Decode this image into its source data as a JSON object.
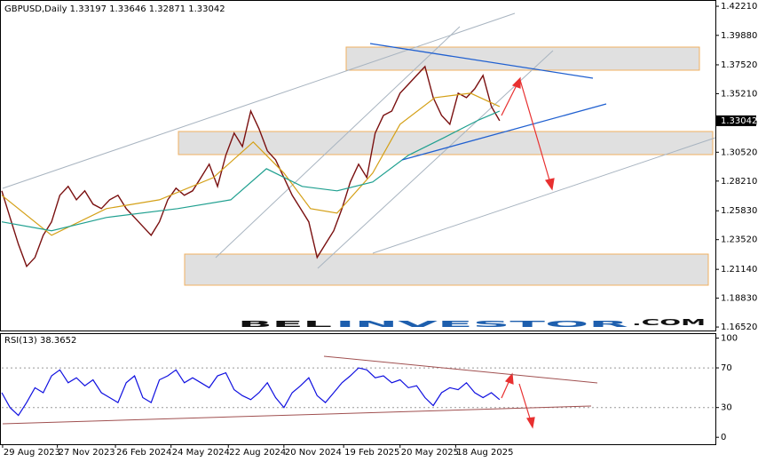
{
  "chart_data": [
    {
      "type": "line",
      "title": "GBPUSD,Daily  1.33197 1.33646 1.32871 1.33042",
      "price_tag": "1.33042",
      "watermark": [
        "BEL",
        "INVESTOR",
        ".COM"
      ],
      "xlim": [
        0,
        86
      ],
      "xticks": [
        {
          "value": 0.1,
          "label": "29 Aug 2023"
        },
        {
          "value": 6.7,
          "label": "27 Nov 2023"
        },
        {
          "value": 13.7,
          "label": "26 Feb 2024"
        },
        {
          "value": 20.4,
          "label": "24 May 2024"
        },
        {
          "value": 27.3,
          "label": "22 Aug 2024"
        },
        {
          "value": 34,
          "label": "20 Nov 2024"
        },
        {
          "value": 41.2,
          "label": "19 Feb 2025"
        },
        {
          "value": 48,
          "label": "20 May 2025"
        },
        {
          "value": 54.7,
          "label": "18 Aug 2025"
        }
      ],
      "ylim": [
        1.1624,
        1.4257
      ],
      "yticks": [
        {
          "value": 1.4221,
          "label": "1.42210"
        },
        {
          "value": 1.3988,
          "label": "1.39880"
        },
        {
          "value": 1.3752,
          "label": "1.37520"
        },
        {
          "value": 1.3521,
          "label": "1.35210"
        },
        {
          "value": 1.3286,
          "label": "1.32860"
        },
        {
          "value": 1.3052,
          "label": "1.30520"
        },
        {
          "value": 1.2821,
          "label": "1.28210"
        },
        {
          "value": 1.2583,
          "label": "1.25830"
        },
        {
          "value": 1.2352,
          "label": "1.23520"
        },
        {
          "value": 1.2114,
          "label": "1.21140"
        },
        {
          "value": 1.1883,
          "label": "1.18830"
        },
        {
          "value": 1.1652,
          "label": "1.16520"
        }
      ],
      "series": [
        {
          "color": "#7a1010",
          "x": [
            0,
            1,
            2,
            3,
            4,
            5,
            6,
            7,
            8,
            9,
            10,
            11,
            12,
            13,
            14,
            15,
            16,
            17,
            18,
            19,
            20,
            21,
            22,
            23,
            24,
            25,
            26,
            27,
            28,
            29,
            30,
            31,
            32,
            33,
            34,
            35,
            36,
            37,
            38,
            39,
            40,
            41,
            42,
            43,
            44,
            45,
            46,
            47,
            48,
            49,
            50,
            51,
            52,
            53,
            54,
            55,
            56,
            57,
            58,
            59,
            60
          ],
          "values": [
            1.2743,
            1.2529,
            1.2316,
            1.2138,
            1.2209,
            1.2387,
            1.2494,
            1.2707,
            1.2778,
            1.2671,
            1.2743,
            1.2636,
            1.26,
            1.2671,
            1.2707,
            1.26,
            1.2529,
            1.2458,
            1.2387,
            1.2494,
            1.2671,
            1.2764,
            1.2707,
            1.2743,
            1.2849,
            1.2956,
            1.2778,
            1.3027,
            1.3205,
            1.3098,
            1.3382,
            1.324,
            1.3063,
            1.2991,
            1.2849,
            1.2707,
            1.26,
            1.2494,
            1.2209,
            1.2316,
            1.2423,
            1.26,
            1.2814,
            1.2956,
            1.2849,
            1.3205,
            1.3347,
            1.3382,
            1.3525,
            1.3596,
            1.3667,
            1.3738,
            1.3489,
            1.3347,
            1.3276,
            1.3525,
            1.3489,
            1.356,
            1.3667,
            1.3418,
            1.3304
          ]
        },
        {
          "color": "#d4a017",
          "x": [
            0,
            6,
            12.6,
            19,
            25.5,
            30.3,
            34,
            37.2,
            40.4,
            44.7,
            48,
            52.2,
            56.5,
            60
          ],
          "values": [
            1.2707,
            1.2387,
            1.26,
            1.2671,
            1.2849,
            1.3134,
            1.2885,
            1.26,
            1.2565,
            1.2885,
            1.3276,
            1.3489,
            1.3525,
            1.3418
          ]
        },
        {
          "color": "#20a090",
          "x": [
            0,
            6,
            12.6,
            21.2,
            27.6,
            31.9,
            36.2,
            40.4,
            44.7,
            49,
            53.3,
            57.5,
            60
          ],
          "values": [
            1.2494,
            1.2423,
            1.2529,
            1.26,
            1.2671,
            1.292,
            1.2778,
            1.2743,
            1.2814,
            1.3027,
            1.3169,
            1.3311,
            1.3382
          ]
        }
      ]
    },
    {
      "type": "line",
      "title": "RSI(13) 38.3652",
      "xlim": [
        0,
        86
      ],
      "ylim": [
        -7,
        105
      ],
      "yticks": [
        100,
        70,
        30,
        0
      ],
      "grid_at": [
        70,
        30
      ],
      "series": [
        {
          "color": "#1010e0",
          "x": [
            0,
            1,
            2,
            3,
            4,
            5,
            6,
            7,
            8,
            9,
            10,
            11,
            12,
            13,
            14,
            15,
            16,
            17,
            18,
            19,
            20,
            21,
            22,
            23,
            24,
            25,
            26,
            27,
            28,
            29,
            30,
            31,
            32,
            33,
            34,
            35,
            36,
            37,
            38,
            39,
            40,
            41,
            42,
            43,
            44,
            45,
            46,
            47,
            48,
            49,
            50,
            51,
            52,
            53,
            54,
            55,
            56,
            57,
            58,
            59,
            60
          ],
          "values": [
            45,
            30,
            22,
            35,
            50,
            45,
            62,
            68,
            55,
            60,
            52,
            58,
            45,
            40,
            35,
            55,
            62,
            40,
            35,
            58,
            62,
            68,
            55,
            60,
            55,
            50,
            62,
            65,
            48,
            42,
            38,
            45,
            55,
            40,
            30,
            45,
            52,
            60,
            42,
            35,
            45,
            55,
            62,
            70,
            68,
            60,
            62,
            55,
            58,
            50,
            52,
            40,
            32,
            45,
            50,
            48,
            55,
            45,
            40,
            45,
            38
          ]
        }
      ]
    }
  ]
}
